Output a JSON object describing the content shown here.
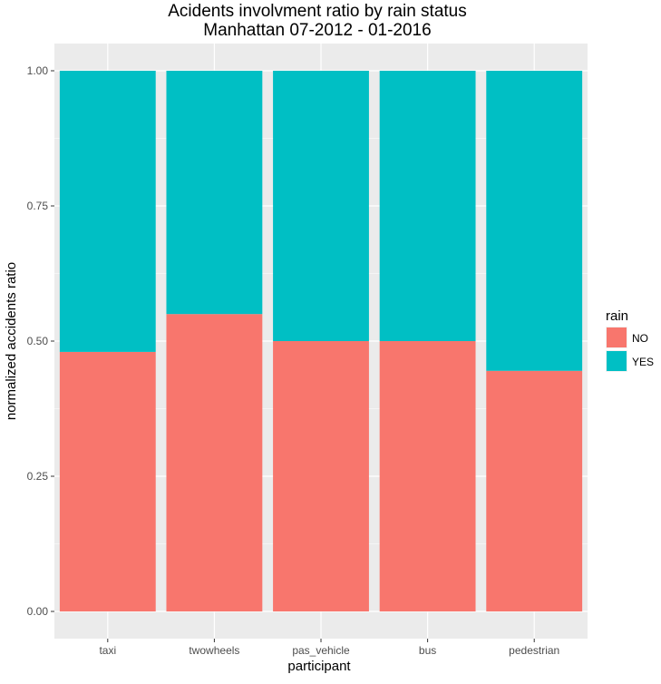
{
  "chart_data": {
    "type": "bar",
    "stacked": true,
    "title": "Acidents involvment ratio by rain status",
    "subtitle": "Manhattan 07-2012 - 01-2016",
    "xlabel": "participant",
    "ylabel": "normalized accidents ratio",
    "categories": [
      "taxi",
      "twowheels",
      "pas_vehicle",
      "bus",
      "pedestrian"
    ],
    "series": [
      {
        "name": "NO",
        "color": "#F8766D",
        "values": [
          0.48,
          0.55,
          0.5,
          0.5,
          0.445
        ]
      },
      {
        "name": "YES",
        "color": "#00BFC4",
        "values": [
          0.52,
          0.45,
          0.5,
          0.5,
          0.555
        ]
      }
    ],
    "ylim": [
      0,
      1
    ],
    "yticks": [
      "0.00",
      "0.25",
      "0.50",
      "0.75",
      "1.00"
    ],
    "grid": true,
    "legend": {
      "title": "rain",
      "position": "right"
    }
  }
}
